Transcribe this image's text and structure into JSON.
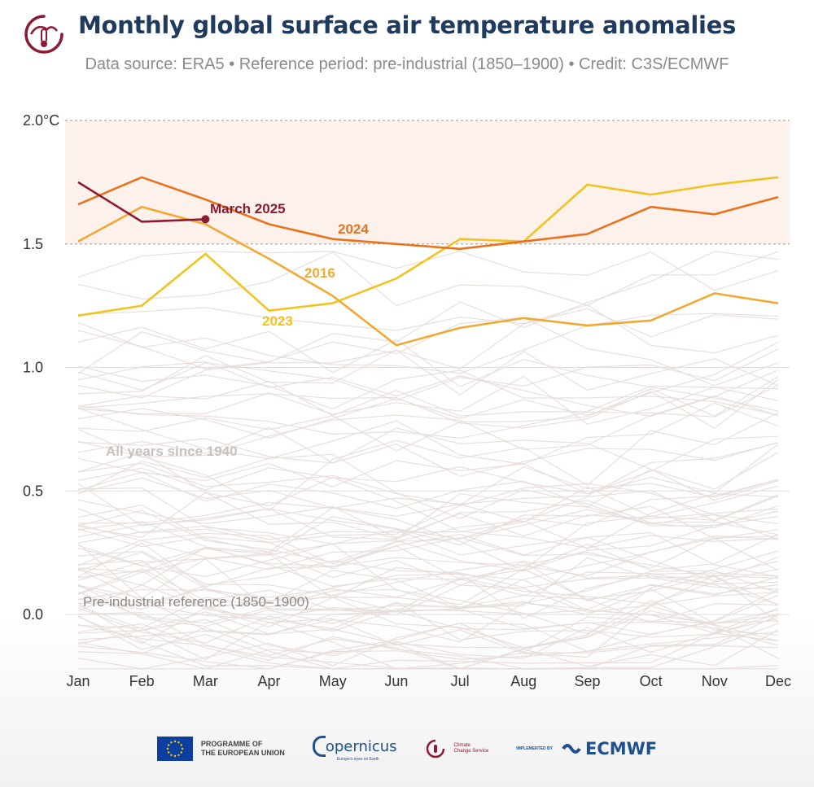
{
  "header": {
    "title": "Monthly global surface air temperature anomalies",
    "subtitle": "Data source: ERA5 • Reference period: pre-industrial (1850–1900) • Credit: C3S/ECMWF"
  },
  "chart_data": {
    "type": "line",
    "title": "Monthly global surface air temperature anomalies",
    "xlabel": "",
    "ylabel": "",
    "categories": [
      "Jan",
      "Feb",
      "Mar",
      "Apr",
      "May",
      "Jun",
      "Jul",
      "Aug",
      "Sep",
      "Oct",
      "Nov",
      "Dec"
    ],
    "yticks": [
      "2.0°C",
      "1.5",
      "1.0",
      "0.5",
      "0.0"
    ],
    "ytick_values": [
      2.0,
      1.5,
      1.0,
      0.5,
      0.0
    ],
    "ylim": [
      -0.2,
      2.0
    ],
    "grid": true,
    "shaded_band": [
      1.5,
      2.0
    ],
    "highlight_series": [
      {
        "name": "2024",
        "color": "#e8731c",
        "values": [
          1.66,
          1.77,
          1.68,
          1.58,
          1.52,
          1.5,
          1.48,
          1.51,
          1.54,
          1.65,
          1.62,
          1.69
        ]
      },
      {
        "name": "2023",
        "color": "#f2c21f",
        "values": [
          1.21,
          1.25,
          1.46,
          1.23,
          1.26,
          1.36,
          1.52,
          1.51,
          1.74,
          1.7,
          1.74,
          1.77
        ]
      },
      {
        "name": "2016",
        "color": "#f2a933",
        "values": [
          1.51,
          1.65,
          1.58,
          1.44,
          1.29,
          1.09,
          1.16,
          1.2,
          1.17,
          1.19,
          1.3,
          1.26
        ]
      },
      {
        "name": "March 2025",
        "color": "#8b1a32",
        "values": [
          1.75,
          1.59,
          1.6
        ]
      }
    ],
    "background_series_label": "All years since 1940",
    "background_color": "#e6dcd8",
    "reference_label": "Pre-industrial reference (1850–1900)"
  },
  "footer": {
    "eu_text": "PROGRAMME OF\nTHE EUROPEAN UNION",
    "copernicus": "opernicus",
    "copernicus_sub": "Europe's eyes on Earth",
    "c3s": "Climate\nChange Service",
    "implemented": "IMPLEMENTED BY",
    "ecmwf": "ECMWF"
  },
  "icons": [
    "c3s-thermometer-logo-icon",
    "eu-flag-icon",
    "copernicus-logo-icon",
    "c3s-logo-icon",
    "ecmwf-logo-icon"
  ]
}
